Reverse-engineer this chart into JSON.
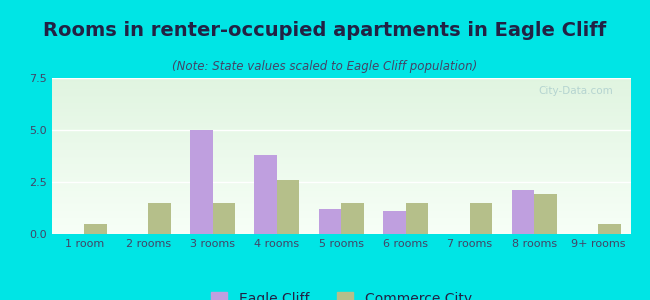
{
  "title": "Rooms in renter-occupied apartments in Eagle Cliff",
  "subtitle": "(Note: State values scaled to Eagle Cliff population)",
  "categories": [
    "1 room",
    "2 rooms",
    "3 rooms",
    "4 rooms",
    "5 rooms",
    "6 rooms",
    "7 rooms",
    "8 rooms",
    "9+ rooms"
  ],
  "eagle_cliff": [
    0.0,
    0.0,
    5.0,
    3.8,
    1.2,
    1.1,
    0.0,
    2.1,
    0.0
  ],
  "commerce_city": [
    0.5,
    1.5,
    1.5,
    2.6,
    1.5,
    1.5,
    1.5,
    1.9,
    0.5
  ],
  "eagle_cliff_color": "#bf9fdf",
  "commerce_city_color": "#b5bf8a",
  "background_outer": "#00e5e5",
  "background_plot_top": "#e8f4e8",
  "background_plot_bottom": "#f0f8f0",
  "ylim": [
    0,
    7.5
  ],
  "yticks": [
    0,
    2.5,
    5,
    7.5
  ],
  "bar_width": 0.35,
  "title_fontsize": 14,
  "subtitle_fontsize": 8.5,
  "legend_fontsize": 10,
  "tick_fontsize": 8,
  "grid_color": "#ffffff",
  "title_color": "#222244",
  "subtitle_color": "#444466",
  "tick_color": "#444466",
  "watermark": "City-Data.com"
}
